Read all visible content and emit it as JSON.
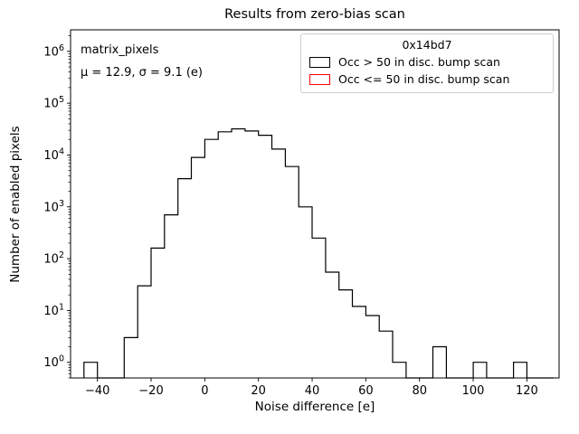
{
  "title": "Results from zero-bias scan",
  "annotation": {
    "line1": "matrix_pixels",
    "line2": "μ = 12.9, σ = 9.1 (e)"
  },
  "legend": {
    "title": "0x14bd7",
    "entries": [
      {
        "label": "Occ > 50 in disc. bump scan",
        "color": "#000000"
      },
      {
        "label": "Occ <= 50 in disc. bump scan",
        "color": "#ff0000"
      }
    ]
  },
  "chart_data": {
    "type": "bar",
    "subtype": "step-histogram",
    "title": "Results from zero-bias scan",
    "xlabel": "Noise difference [e]",
    "ylabel": "Number of enabled pixels",
    "yscale": "log",
    "xlim": [
      -50,
      132
    ],
    "ylim": [
      0.5,
      2600000
    ],
    "xticks": [
      -40,
      -20,
      0,
      20,
      40,
      60,
      80,
      100,
      120
    ],
    "ytick_exponents": [
      0,
      1,
      2,
      3,
      4,
      5,
      6
    ],
    "series_color": "#000000",
    "stats": {
      "mu": 12.9,
      "sigma": 9.1,
      "unit": "e"
    },
    "bin_width": 5,
    "bin_edges": [
      -45,
      -40,
      -35,
      -30,
      -25,
      -20,
      -15,
      -10,
      -5,
      0,
      5,
      10,
      15,
      20,
      25,
      30,
      35,
      40,
      45,
      50,
      55,
      60,
      65,
      70,
      75,
      80,
      85,
      90,
      95,
      100,
      105,
      110,
      115,
      120,
      125,
      130
    ],
    "counts": [
      1,
      0,
      0,
      3,
      30,
      160,
      700,
      3500,
      9000,
      20000,
      28000,
      32000,
      29000,
      24000,
      13000,
      6000,
      1000,
      250,
      55,
      25,
      12,
      8,
      4,
      1,
      0,
      0,
      2,
      0,
      0,
      1,
      0,
      0,
      1,
      0,
      0
    ]
  }
}
